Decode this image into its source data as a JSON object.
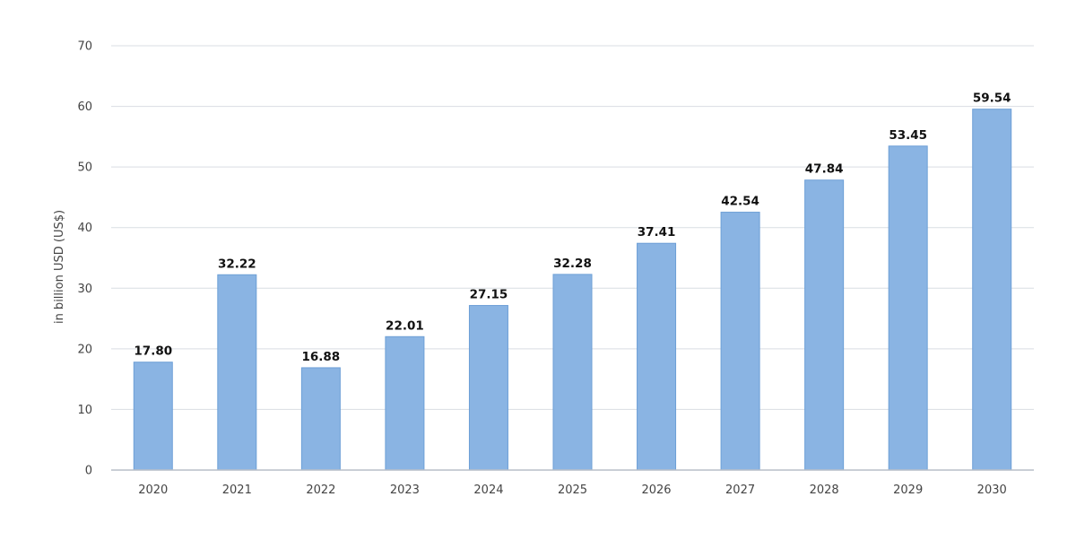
{
  "chart_data": {
    "type": "bar",
    "categories": [
      "2020",
      "2021",
      "2022",
      "2023",
      "2024",
      "2025",
      "2026",
      "2027",
      "2028",
      "2029",
      "2030"
    ],
    "values": [
      17.8,
      32.22,
      16.88,
      22.01,
      27.15,
      32.28,
      37.41,
      42.54,
      47.84,
      53.45,
      59.54
    ],
    "value_labels": [
      "17.80",
      "32.22",
      "16.88",
      "22.01",
      "27.15",
      "32.28",
      "37.41",
      "42.54",
      "47.84",
      "53.45",
      "59.54"
    ],
    "yticks": [
      "0",
      "10",
      "20",
      "30",
      "40",
      "50",
      "60",
      "70"
    ],
    "ylabel": "in billion USD (US$)",
    "xlabel": "",
    "ylim": [
      0,
      70
    ],
    "grid": true,
    "bar_color": "#8ab4e3",
    "bar_edge_color": "#6d9fd6"
  }
}
